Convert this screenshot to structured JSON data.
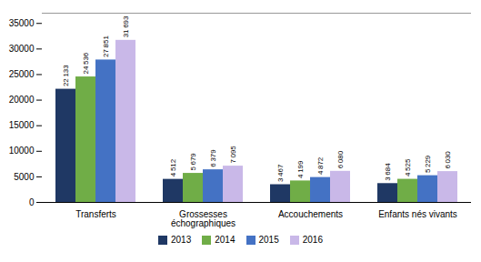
{
  "chart_data": {
    "type": "bar",
    "categories": [
      "Transferts",
      "Grossesses\néchographiques",
      "Accouchements",
      "Enfants nés vivants"
    ],
    "series": [
      {
        "name": "2013",
        "color": "#1F3864",
        "values": [
          22133,
          4512,
          3467,
          3684
        ],
        "value_labels": [
          "22 133",
          "4 512",
          "3 467",
          "3 684"
        ]
      },
      {
        "name": "2014",
        "color": "#70AD47",
        "values": [
          24536,
          5679,
          4199,
          4525
        ],
        "value_labels": [
          "24 536",
          "5 679",
          "4 199",
          "4 525"
        ]
      },
      {
        "name": "2015",
        "color": "#4472C4",
        "values": [
          27851,
          6379,
          4872,
          5229
        ],
        "value_labels": [
          "27 851",
          "6 379",
          "4 872",
          "5 229"
        ]
      },
      {
        "name": "2016",
        "color": "#C9B8E8",
        "values": [
          31693,
          7095,
          6080,
          6030
        ],
        "value_labels": [
          "31 693",
          "7 095",
          "6 080",
          "6 030"
        ]
      }
    ],
    "ylim": [
      0,
      37000
    ],
    "yticks": [
      0,
      5000,
      10000,
      15000,
      20000,
      25000,
      30000,
      35000
    ],
    "grid": false,
    "legend": "lower center",
    "data_labels": true
  }
}
